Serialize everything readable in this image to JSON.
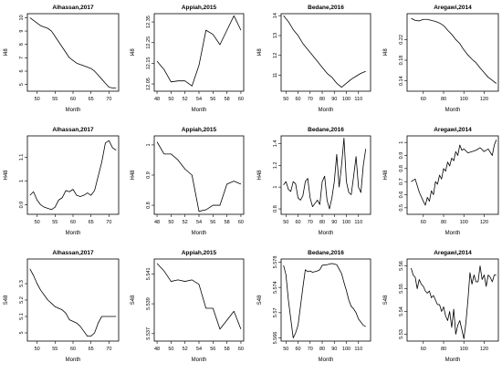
{
  "chart_data": [
    {
      "type": "line",
      "title": "Alhassan,2017",
      "xlabel": "Month",
      "ylabel": "I48",
      "xlim": [
        47.3,
        72.7
      ],
      "ylim": [
        4.5,
        10.3
      ],
      "xticks": [
        50,
        55,
        60,
        65,
        70
      ],
      "yticks": [
        5,
        6,
        7,
        8,
        9,
        10
      ],
      "x": [
        48,
        49,
        50,
        51,
        52,
        53,
        54,
        55,
        56,
        57,
        58,
        59,
        60,
        61,
        62,
        63,
        64,
        65,
        66,
        67,
        68,
        69,
        70,
        71,
        72
      ],
      "y": [
        10.0,
        9.8,
        9.6,
        9.4,
        9.3,
        9.2,
        9.0,
        8.6,
        8.2,
        7.8,
        7.4,
        7.0,
        6.8,
        6.6,
        6.5,
        6.4,
        6.3,
        6.2,
        6.0,
        5.7,
        5.4,
        5.1,
        4.8,
        4.75,
        4.75
      ]
    },
    {
      "type": "line",
      "title": "Appiah,2015",
      "xlabel": "Month",
      "ylabel": "I48",
      "xlim": [
        47.6,
        60.4
      ],
      "ylim": [
        12.015,
        12.39
      ],
      "xticks": [
        48,
        50,
        52,
        54,
        56,
        58,
        60
      ],
      "yticks": [
        12.05,
        12.15,
        12.25,
        12.35
      ],
      "x": [
        48,
        49,
        50,
        51,
        52,
        53,
        54,
        55,
        56,
        57,
        58,
        59,
        60
      ],
      "y": [
        12.16,
        12.12,
        12.06,
        12.065,
        12.065,
        12.04,
        12.14,
        12.31,
        12.29,
        12.24,
        12.31,
        12.38,
        12.31
      ]
    },
    {
      "type": "line",
      "title": "Bedane,2016",
      "xlabel": "Month",
      "ylabel": "I48",
      "xlim": [
        46,
        120
      ],
      "ylim": [
        10.2,
        14.1
      ],
      "xticks": [
        50,
        60,
        70,
        80,
        90,
        100,
        110
      ],
      "yticks": [
        11,
        12,
        13,
        14
      ],
      "x": [
        48,
        52,
        56,
        60,
        64,
        68,
        72,
        76,
        80,
        84,
        88,
        92,
        96,
        100,
        104,
        108,
        112,
        116
      ],
      "y": [
        14.0,
        13.7,
        13.3,
        13.0,
        12.6,
        12.3,
        12.0,
        11.7,
        11.4,
        11.1,
        10.9,
        10.6,
        10.4,
        10.6,
        10.8,
        10.95,
        11.1,
        11.2
      ]
    },
    {
      "type": "line",
      "title": "Aregawi,2014",
      "xlabel": "Month",
      "ylabel": "I48",
      "xlim": [
        44,
        134
      ],
      "ylim": [
        0.12,
        0.27
      ],
      "xticks": [
        60,
        80,
        100,
        120
      ],
      "yticks": [
        0.14,
        0.18,
        0.22
      ],
      "x": [
        48,
        52,
        56,
        60,
        64,
        68,
        72,
        76,
        80,
        84,
        88,
        92,
        96,
        100,
        104,
        108,
        112,
        116,
        120,
        124,
        128,
        132
      ],
      "y": [
        0.261,
        0.257,
        0.256,
        0.259,
        0.259,
        0.257,
        0.255,
        0.252,
        0.247,
        0.238,
        0.23,
        0.22,
        0.212,
        0.2,
        0.19,
        0.182,
        0.175,
        0.165,
        0.156,
        0.147,
        0.141,
        0.135
      ]
    },
    {
      "type": "line",
      "title": "Alhassan,2017",
      "xlabel": "Month",
      "ylabel": "H48",
      "xlim": [
        47.3,
        72.7
      ],
      "ylim": [
        0.86,
        1.19
      ],
      "xticks": [
        50,
        55,
        60,
        65,
        70
      ],
      "yticks": [
        0.9,
        1.0,
        1.1
      ],
      "x": [
        48,
        49,
        50,
        51,
        52,
        53,
        54,
        55,
        56,
        57,
        58,
        59,
        60,
        61,
        62,
        63,
        64,
        65,
        66,
        67,
        68,
        69,
        70,
        71,
        72
      ],
      "y": [
        0.94,
        0.955,
        0.92,
        0.9,
        0.89,
        0.885,
        0.88,
        0.89,
        0.92,
        0.93,
        0.96,
        0.955,
        0.965,
        0.94,
        0.935,
        0.94,
        0.95,
        0.94,
        0.96,
        1.02,
        1.08,
        1.16,
        1.17,
        1.14,
        1.13
      ]
    },
    {
      "type": "line",
      "title": "Appiah,2015",
      "xlabel": "Month",
      "ylabel": "H48",
      "xlim": [
        47.6,
        60.4
      ],
      "ylim": [
        0.77,
        1.03
      ],
      "xticks": [
        48,
        50,
        52,
        54,
        56,
        58,
        60
      ],
      "yticks": [
        0.8,
        0.9,
        1.0
      ],
      "x": [
        48,
        49,
        50,
        51,
        52,
        53,
        54,
        55,
        56,
        57,
        58,
        59,
        60
      ],
      "y": [
        1.01,
        0.97,
        0.97,
        0.95,
        0.92,
        0.9,
        0.78,
        0.785,
        0.8,
        0.8,
        0.87,
        0.88,
        0.87
      ]
    },
    {
      "type": "line",
      "title": "Bedane,2016",
      "xlabel": "Month",
      "ylabel": "H48",
      "xlim": [
        46,
        120
      ],
      "ylim": [
        0.75,
        1.47
      ],
      "xticks": [
        50,
        60,
        70,
        80,
        90,
        100,
        110
      ],
      "yticks": [
        0.8,
        1.0,
        1.2,
        1.4
      ],
      "x": [
        48,
        50,
        52,
        54,
        56,
        58,
        60,
        62,
        64,
        66,
        68,
        70,
        72,
        74,
        76,
        78,
        80,
        82,
        84,
        86,
        88,
        90,
        92,
        94,
        96,
        98,
        100,
        102,
        104,
        106,
        108,
        110,
        112,
        114,
        116
      ],
      "y": [
        1.02,
        1.05,
        0.98,
        0.96,
        1.05,
        1.03,
        0.9,
        0.88,
        0.92,
        1.05,
        1.08,
        0.9,
        0.82,
        0.85,
        0.88,
        0.84,
        1.05,
        1.1,
        0.88,
        0.8,
        0.9,
        1.05,
        1.3,
        1.0,
        1.2,
        1.45,
        1.05,
        0.95,
        0.93,
        1.1,
        1.28,
        1.0,
        0.95,
        1.2,
        1.35
      ]
    },
    {
      "type": "line",
      "title": "Aregawi,2014",
      "xlabel": "Month",
      "ylabel": "H48",
      "xlim": [
        44,
        134
      ],
      "ylim": [
        0.45,
        1.05
      ],
      "xticks": [
        60,
        80,
        100,
        120
      ],
      "yticks": [
        0.5,
        0.6,
        0.7,
        0.8,
        0.9,
        1.0
      ],
      "x": [
        48,
        52,
        56,
        60,
        62,
        64,
        66,
        68,
        70,
        72,
        74,
        76,
        78,
        80,
        82,
        84,
        86,
        88,
        90,
        92,
        94,
        96,
        98,
        100,
        104,
        108,
        112,
        116,
        120,
        124,
        128,
        130,
        132
      ],
      "y": [
        0.7,
        0.72,
        0.62,
        0.55,
        0.52,
        0.58,
        0.55,
        0.63,
        0.6,
        0.7,
        0.68,
        0.75,
        0.72,
        0.8,
        0.78,
        0.85,
        0.82,
        0.88,
        0.86,
        0.93,
        0.9,
        0.98,
        0.94,
        0.95,
        0.92,
        0.93,
        0.94,
        0.96,
        0.93,
        0.95,
        0.9,
        0.98,
        1.02
      ]
    },
    {
      "type": "line",
      "title": "Alhassan,2017",
      "xlabel": "Month",
      "ylabel": "S48",
      "xlim": [
        47.3,
        72.7
      ],
      "ylim": [
        4.95,
        5.45
      ],
      "xticks": [
        50,
        55,
        60,
        65,
        70
      ],
      "yticks": [
        5.0,
        5.1,
        5.2,
        5.3
      ],
      "x": [
        48,
        49,
        50,
        51,
        52,
        53,
        54,
        55,
        56,
        57,
        58,
        59,
        60,
        61,
        62,
        63,
        64,
        65,
        66,
        67,
        68,
        69,
        70,
        71,
        72
      ],
      "y": [
        5.39,
        5.35,
        5.3,
        5.26,
        5.23,
        5.2,
        5.18,
        5.16,
        5.15,
        5.14,
        5.12,
        5.08,
        5.07,
        5.06,
        5.04,
        5.01,
        4.98,
        4.98,
        5.0,
        5.06,
        5.1,
        5.1,
        5.1,
        5.1,
        5.1
      ]
    },
    {
      "type": "line",
      "title": "Appiah,2015",
      "xlabel": "Month",
      "ylabel": "S48",
      "xlim": [
        47.6,
        60.4
      ],
      "ylim": [
        5.5365,
        5.542
      ],
      "xticks": [
        48,
        50,
        52,
        54,
        56,
        58,
        60
      ],
      "yticks": [
        5.537,
        5.539,
        5.541
      ],
      "x": [
        48,
        49,
        50,
        51,
        52,
        53,
        54,
        55,
        56,
        57,
        58,
        59,
        60
      ],
      "y": [
        5.5417,
        5.5412,
        5.5405,
        5.5406,
        5.5405,
        5.5406,
        5.5403,
        5.5387,
        5.5387,
        5.5373,
        5.5379,
        5.5385,
        5.5373
      ]
    },
    {
      "type": "line",
      "title": "Bedane,2016",
      "xlabel": "Month",
      "ylabel": "S48",
      "xlim": [
        46,
        120
      ],
      "ylim": [
        5.5655,
        5.5785
      ],
      "xticks": [
        50,
        60,
        70,
        80,
        90,
        100,
        110
      ],
      "yticks": [
        5.566,
        5.57,
        5.574,
        5.578
      ],
      "x": [
        48,
        50,
        52,
        54,
        56,
        58,
        60,
        62,
        64,
        66,
        68,
        70,
        72,
        74,
        76,
        78,
        80,
        84,
        88,
        92,
        96,
        98,
        100,
        102,
        104,
        106,
        108,
        110,
        112,
        114,
        116
      ],
      "y": [
        5.5775,
        5.576,
        5.572,
        5.569,
        5.566,
        5.5668,
        5.568,
        5.571,
        5.574,
        5.5768,
        5.5765,
        5.5766,
        5.5764,
        5.5765,
        5.5766,
        5.5768,
        5.5775,
        5.5776,
        5.5778,
        5.5776,
        5.5762,
        5.5748,
        5.5735,
        5.572,
        5.571,
        5.5706,
        5.57,
        5.569,
        5.5685,
        5.568,
        5.5678
      ]
    },
    {
      "type": "line",
      "title": "Aregawi,2014",
      "xlabel": "Month",
      "ylabel": "S48",
      "xlim": [
        44,
        134
      ],
      "ylim": [
        5.527,
        5.563
      ],
      "xticks": [
        60,
        80,
        100,
        120
      ],
      "yticks": [
        5.53,
        5.54,
        5.55,
        5.56
      ],
      "x": [
        48,
        50,
        52,
        54,
        56,
        58,
        60,
        62,
        64,
        66,
        68,
        70,
        72,
        74,
        76,
        78,
        80,
        82,
        84,
        86,
        88,
        90,
        92,
        94,
        96,
        98,
        100,
        102,
        104,
        106,
        108,
        110,
        112,
        114,
        116,
        118,
        120,
        122,
        124,
        126,
        128,
        130,
        132
      ],
      "y": [
        5.559,
        5.556,
        5.555,
        5.55,
        5.554,
        5.552,
        5.551,
        5.549,
        5.548,
        5.549,
        5.546,
        5.547,
        5.545,
        5.543,
        5.543,
        5.54,
        5.542,
        5.538,
        5.536,
        5.54,
        5.533,
        5.541,
        5.53,
        5.534,
        5.536,
        5.532,
        5.528,
        5.535,
        5.545,
        5.557,
        5.552,
        5.556,
        5.553,
        5.553,
        5.56,
        5.554,
        5.556,
        5.551,
        5.556,
        5.555,
        5.553,
        5.556,
        5.556
      ]
    }
  ]
}
